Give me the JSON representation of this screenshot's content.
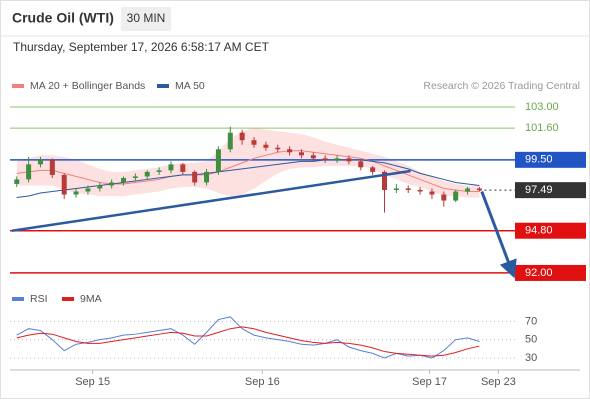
{
  "chart_data": [
    {
      "type": "candlestick",
      "title": "Crude Oil (WTI)",
      "badge": "30 MIN",
      "subtitle": "Thursday, September 17, 2026 6:58:17 AM CET",
      "source": "Research © 2026 Trading Central",
      "xlim": [
        -0.4,
        42
      ],
      "ylim": [
        91.2,
        103.6
      ],
      "up_color": "#3f8f3f",
      "down_color": "#b83a3a",
      "ohlc": {
        "open": [
          97.9,
          98.2,
          99.2,
          99.5,
          98.5,
          97.2,
          97.4,
          97.6,
          97.8,
          98.0,
          98.3,
          98.4,
          98.7,
          98.8,
          99.2,
          98.7,
          98.0,
          98.7,
          100.2,
          101.3,
          100.8,
          100.5,
          100.3,
          100.2,
          100.0,
          99.8,
          99.6,
          99.5,
          99.6,
          99.4,
          99.0,
          98.7,
          97.5,
          97.6,
          97.5,
          97.4,
          97.2,
          96.8,
          97.4,
          97.6
        ],
        "high": [
          98.4,
          99.7,
          99.7,
          99.6,
          98.6,
          97.6,
          97.8,
          98.0,
          98.2,
          98.4,
          98.6,
          98.8,
          99.0,
          99.4,
          99.3,
          98.8,
          98.9,
          100.4,
          101.7,
          101.5,
          101.0,
          100.7,
          100.5,
          100.4,
          100.2,
          100.0,
          99.8,
          99.8,
          99.8,
          99.5,
          99.1,
          98.8,
          97.9,
          97.8,
          97.7,
          97.6,
          97.4,
          97.5,
          97.7,
          97.7
        ],
        "low": [
          97.7,
          98.0,
          99.0,
          98.3,
          96.9,
          97.0,
          97.2,
          97.4,
          97.6,
          97.8,
          98.1,
          98.2,
          98.5,
          98.6,
          98.5,
          97.8,
          97.8,
          98.5,
          100.0,
          100.5,
          100.3,
          100.1,
          100.0,
          99.8,
          99.6,
          99.4,
          99.3,
          99.3,
          99.2,
          98.8,
          98.5,
          96.0,
          97.3,
          97.3,
          97.2,
          96.9,
          96.4,
          96.7,
          97.2,
          97.4
        ],
        "close": [
          98.2,
          99.2,
          99.5,
          98.5,
          97.2,
          97.4,
          97.6,
          97.8,
          98.0,
          98.3,
          98.4,
          98.7,
          98.8,
          99.2,
          98.7,
          98.0,
          98.7,
          100.2,
          101.3,
          100.8,
          100.5,
          100.3,
          100.2,
          100.0,
          99.8,
          99.6,
          99.5,
          99.6,
          99.4,
          99.0,
          98.7,
          97.5,
          97.6,
          97.5,
          97.4,
          97.2,
          96.8,
          97.4,
          97.6,
          97.49
        ]
      },
      "series": [
        {
          "name": "MA 20 + Bollinger Bands",
          "color": "#f08080",
          "band_color": "#fde0e0",
          "values": [
            98.6,
            98.7,
            98.8,
            98.8,
            98.6,
            98.4,
            98.2,
            98.0,
            97.9,
            97.9,
            98.0,
            98.1,
            98.2,
            98.4,
            98.5,
            98.5,
            98.5,
            98.7,
            99.0,
            99.3,
            99.6,
            99.8,
            100.0,
            100.1,
            100.1,
            100.0,
            99.9,
            99.8,
            99.7,
            99.6,
            99.4,
            99.1,
            98.8,
            98.5,
            98.2,
            97.9,
            97.6,
            97.5,
            97.4,
            97.4
          ],
          "upper": [
            99.4,
            99.6,
            99.8,
            99.8,
            99.7,
            99.5,
            99.2,
            98.9,
            98.7,
            98.7,
            98.8,
            98.9,
            99.0,
            99.2,
            99.3,
            99.3,
            99.4,
            100.1,
            100.9,
            101.4,
            101.6,
            101.5,
            101.4,
            101.3,
            101.2,
            101.0,
            100.7,
            100.5,
            100.3,
            100.1,
            99.9,
            99.7,
            99.4,
            99.1,
            98.7,
            98.4,
            98.1,
            97.9,
            97.8,
            97.8
          ],
          "lower": [
            97.8,
            97.8,
            97.8,
            97.8,
            97.5,
            97.3,
            97.2,
            97.1,
            97.1,
            97.1,
            97.2,
            97.3,
            97.4,
            97.6,
            97.7,
            97.7,
            97.6,
            97.3,
            97.1,
            97.2,
            97.6,
            98.1,
            98.6,
            98.9,
            99.0,
            99.0,
            99.1,
            99.1,
            99.1,
            99.1,
            98.9,
            98.5,
            98.2,
            97.9,
            97.7,
            97.4,
            97.1,
            97.1,
            97.0,
            97.0
          ]
        },
        {
          "name": "MA 50",
          "color": "#2c5aa0",
          "values": [
            97.0,
            97.1,
            97.3,
            97.4,
            97.5,
            97.6,
            97.7,
            97.8,
            97.9,
            98.0,
            98.1,
            98.2,
            98.3,
            98.4,
            98.5,
            98.5,
            98.6,
            98.7,
            98.8,
            98.9,
            99.0,
            99.1,
            99.2,
            99.3,
            99.4,
            99.4,
            99.5,
            99.5,
            99.5,
            99.5,
            99.4,
            99.3,
            99.1,
            98.9,
            98.6,
            98.4,
            98.2,
            98.0,
            97.9,
            97.8
          ]
        }
      ],
      "levels": [
        {
          "value": 103,
          "label": "103.00",
          "color": "#8cc56b",
          "box": false
        },
        {
          "value": 101.6,
          "label": "101.60",
          "color": "#8cc56b",
          "box": false
        },
        {
          "value": 99.5,
          "label": "99.50",
          "color": "#2255c4",
          "box": true
        },
        {
          "value": 97.49,
          "label": "97.49",
          "color": "#333333",
          "box": true,
          "dotted": true
        },
        {
          "value": 94.8,
          "label": "94.80",
          "color": "#e01010",
          "box": true
        },
        {
          "value": 92,
          "label": "92.00",
          "color": "#e01010",
          "box": true
        }
      ],
      "trend_lines": [
        {
          "x": [
            -0.4,
            33.2
          ],
          "y": [
            94.8,
            98.76
          ],
          "color": "#2c5aa0",
          "arrow": false
        },
        {
          "x": [
            39.2,
            41.7
          ],
          "y": [
            97.4,
            92.2
          ],
          "color": "#2c5aa0",
          "arrow": true
        }
      ]
    },
    {
      "type": "line",
      "xlim": [
        -0.4,
        42
      ],
      "ylim": [
        19,
        77
      ],
      "yticks": [
        70,
        50,
        30
      ],
      "xticks": [
        {
          "value": 6.4,
          "label": "Sep 15"
        },
        {
          "value": 20.7,
          "label": "Sep 16"
        },
        {
          "value": 34.8,
          "label": "Sep 17"
        },
        {
          "value": 40.6,
          "label": "Sep 23"
        }
      ],
      "series": [
        {
          "name": "RSI",
          "color": "#5b7fd6",
          "values": [
            55,
            62,
            60,
            50,
            38,
            45,
            47,
            50,
            52,
            55,
            56,
            58,
            60,
            62,
            55,
            45,
            58,
            72,
            75,
            62,
            55,
            52,
            50,
            48,
            45,
            44,
            46,
            50,
            42,
            38,
            35,
            30,
            35,
            32,
            33,
            30,
            38,
            50,
            52,
            48
          ]
        },
        {
          "name": "9MA",
          "color": "#e02020",
          "values": [
            52,
            55,
            57,
            56,
            52,
            48,
            46,
            46,
            48,
            50,
            52,
            54,
            56,
            58,
            57,
            54,
            54,
            58,
            62,
            64,
            62,
            58,
            55,
            52,
            49,
            47,
            46,
            47,
            46,
            44,
            41,
            37,
            35,
            34,
            33,
            32,
            33,
            36,
            40,
            43
          ]
        }
      ]
    }
  ]
}
